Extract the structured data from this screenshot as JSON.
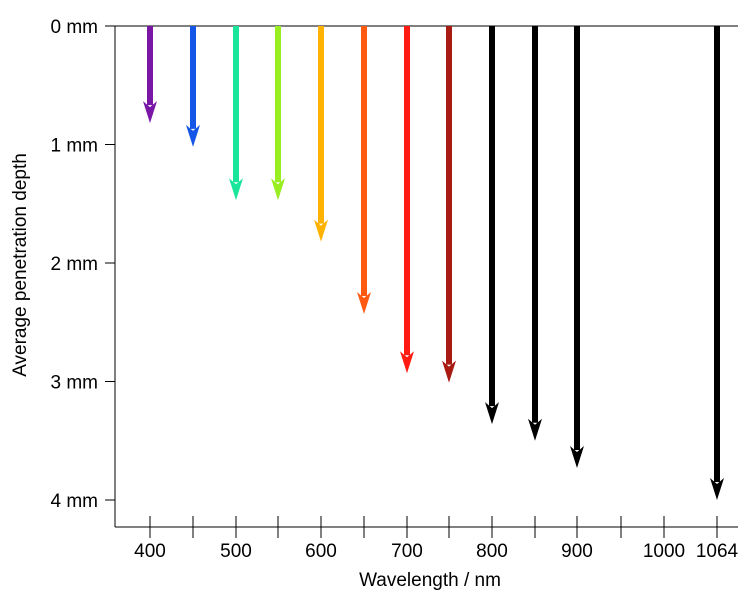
{
  "chart_data": {
    "type": "bar",
    "orientation": "vertical-downward-arrows",
    "xlabel": "Wavelength / nm",
    "ylabel": "Average penetration depth",
    "y_unit": "mm",
    "ylim": [
      0,
      4
    ],
    "y_direction": "inverted",
    "y_ticks": [
      0,
      1,
      2,
      3,
      4
    ],
    "y_tick_labels": [
      "0 mm",
      "1 mm",
      "2 mm",
      "3 mm",
      "4 mm"
    ],
    "x_ticks": [
      400,
      450,
      500,
      550,
      600,
      650,
      700,
      750,
      800,
      850,
      900,
      950,
      1000,
      1064
    ],
    "x_tick_labels": [
      {
        "x": 400,
        "label": "400"
      },
      {
        "x": 500,
        "label": "500"
      },
      {
        "x": 600,
        "label": "600"
      },
      {
        "x": 700,
        "label": "700"
      },
      {
        "x": 800,
        "label": "800"
      },
      {
        "x": 900,
        "label": "900"
      },
      {
        "x": 1000,
        "label": "1000"
      },
      {
        "x": 1064,
        "label": "1064"
      }
    ],
    "x_axis_break_after": 1000,
    "points": [
      {
        "wavelength": 400,
        "depth_mm": 0.82,
        "color": "#7a16a6"
      },
      {
        "wavelength": 450,
        "depth_mm": 1.02,
        "color": "#1456e6"
      },
      {
        "wavelength": 500,
        "depth_mm": 1.47,
        "color": "#19e69a"
      },
      {
        "wavelength": 550,
        "depth_mm": 1.47,
        "color": "#99ee22"
      },
      {
        "wavelength": 600,
        "depth_mm": 1.82,
        "color": "#ffb200"
      },
      {
        "wavelength": 650,
        "depth_mm": 2.43,
        "color": "#ff5a12"
      },
      {
        "wavelength": 700,
        "depth_mm": 2.93,
        "color": "#ff1a12"
      },
      {
        "wavelength": 750,
        "depth_mm": 3.01,
        "color": "#a81a12"
      },
      {
        "wavelength": 800,
        "depth_mm": 3.36,
        "color": "#000000"
      },
      {
        "wavelength": 850,
        "depth_mm": 3.5,
        "color": "#000000"
      },
      {
        "wavelength": 900,
        "depth_mm": 3.73,
        "color": "#000000"
      },
      {
        "wavelength": 1064,
        "depth_mm": 4.0,
        "color": "#000000"
      }
    ],
    "grid": false,
    "legend": "none"
  }
}
